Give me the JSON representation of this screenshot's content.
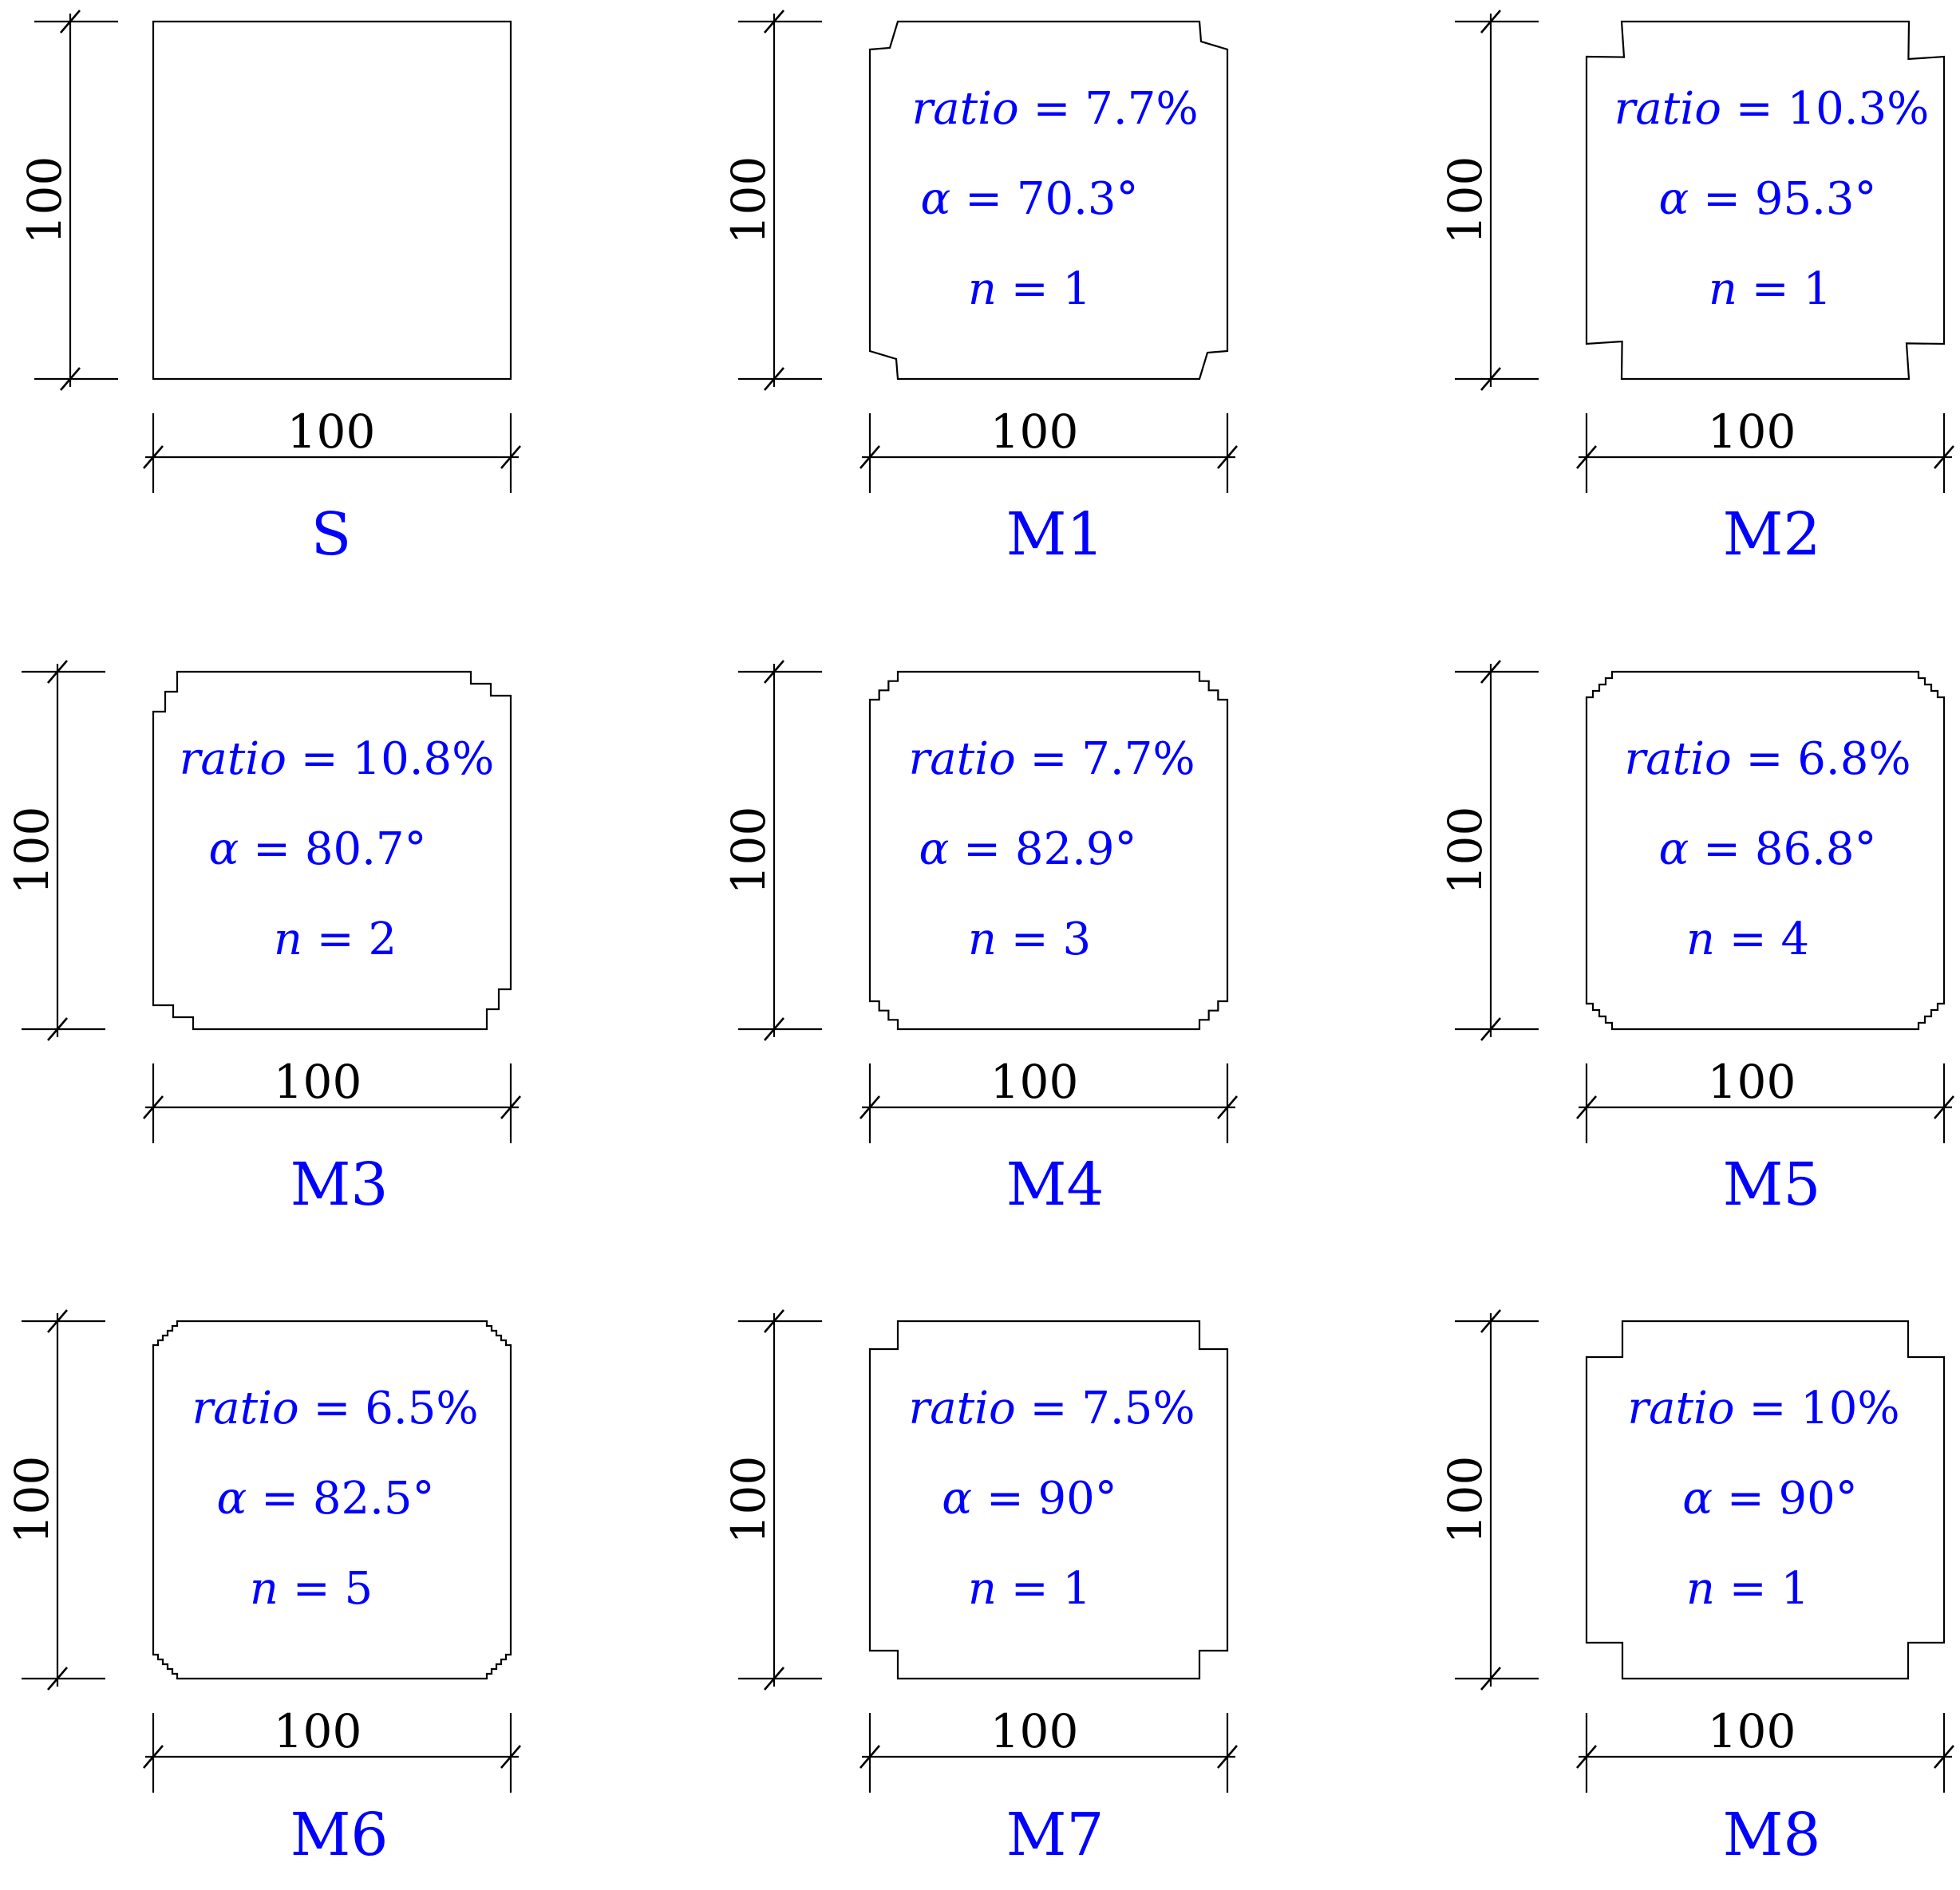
{
  "colors": {
    "label": "#0000ff",
    "drawing": "#000000"
  },
  "sections": [
    {
      "name": "S",
      "width_label": "100",
      "height_label": "100",
      "corner": "none",
      "ratio_var": "",
      "ratio_value": "",
      "alpha_var": "",
      "alpha_value": "",
      "n_var": "",
      "n_value": ""
    },
    {
      "name": "M1",
      "width_label": "100",
      "height_label": "100",
      "corner": "dovetail",
      "ratio_var": "ratio",
      "ratio_value": " = 7.7%",
      "alpha_var": "α",
      "alpha_value": " = 70.3°",
      "n_var": "n",
      "n_value": " = 1"
    },
    {
      "name": "M2",
      "width_label": "100",
      "height_label": "100",
      "corner": "dovetail",
      "ratio_var": "ratio",
      "ratio_value": " = 10.3%",
      "alpha_var": "α",
      "alpha_value": " = 95.3°",
      "n_var": "n",
      "n_value": " = 1"
    },
    {
      "name": "M3",
      "width_label": "100",
      "height_label": "100",
      "corner": "stepped",
      "ratio_var": "ratio",
      "ratio_value": " = 10.8%",
      "alpha_var": "α",
      "alpha_value": " = 80.7°",
      "n_var": "n",
      "n_value": " = 2"
    },
    {
      "name": "M4",
      "width_label": "100",
      "height_label": "100",
      "corner": "stepped",
      "ratio_var": "ratio",
      "ratio_value": " = 7.7%",
      "alpha_var": "α",
      "alpha_value": " = 82.9°",
      "n_var": "n",
      "n_value": " = 3"
    },
    {
      "name": "M5",
      "width_label": "100",
      "height_label": "100",
      "corner": "stepped",
      "ratio_var": "ratio",
      "ratio_value": " = 6.8%",
      "alpha_var": "α",
      "alpha_value": " = 86.8°",
      "n_var": "n",
      "n_value": " = 4"
    },
    {
      "name": "M6",
      "width_label": "100",
      "height_label": "100",
      "corner": "stepped",
      "ratio_var": "ratio",
      "ratio_value": " = 6.5%",
      "alpha_var": "α",
      "alpha_value": " = 82.5°",
      "n_var": "n",
      "n_value": " = 5"
    },
    {
      "name": "M7",
      "width_label": "100",
      "height_label": "100",
      "corner": "notch",
      "ratio_var": "ratio",
      "ratio_value": " = 7.5%",
      "alpha_var": "α",
      "alpha_value": " = 90°",
      "n_var": "n",
      "n_value": " = 1"
    },
    {
      "name": "M8",
      "width_label": "100",
      "height_label": "100",
      "corner": "notch",
      "ratio_var": "ratio",
      "ratio_value": " = 10%",
      "alpha_var": "α",
      "alpha_value": " = 90°",
      "n_var": "n",
      "n_value": " = 1"
    }
  ]
}
